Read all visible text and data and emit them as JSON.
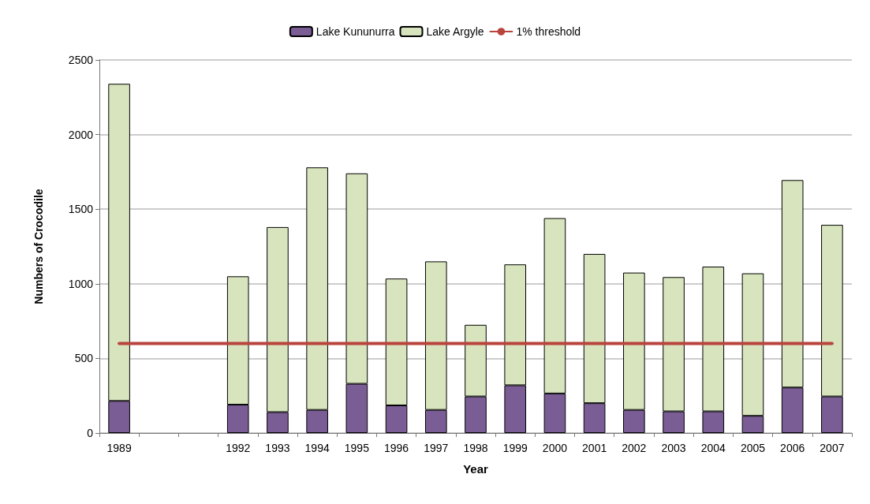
{
  "chart_data": {
    "type": "bar",
    "stacked": true,
    "xlabel": "Year",
    "ylabel": "Numbers of Crocodile",
    "categories": [
      "1989",
      null,
      null,
      "1992",
      "1993",
      "1994",
      "1995",
      "1996",
      "1997",
      "1998",
      "1999",
      "2000",
      "2001",
      "2002",
      "2003",
      "2004",
      "2005",
      "2006",
      "2007"
    ],
    "series": [
      {
        "name": "Lake Kununurra",
        "color": "#7b5d96",
        "values": [
          215,
          null,
          null,
          190,
          140,
          155,
          330,
          185,
          155,
          245,
          320,
          265,
          200,
          155,
          145,
          145,
          115,
          305,
          245
        ]
      },
      {
        "name": "Lake Argyle",
        "color": "#d7e4bd",
        "values": [
          2125,
          null,
          null,
          860,
          1240,
          1625,
          1410,
          850,
          995,
          480,
          810,
          1175,
          1000,
          920,
          900,
          970,
          955,
          1390,
          1150
        ]
      },
      {
        "name": "1% threshold",
        "type": "line",
        "color": "#b9443d",
        "line_style": "solid",
        "marker": "none",
        "values": [
          600,
          600,
          600,
          600,
          600,
          600,
          600,
          600,
          600,
          600,
          600,
          600,
          600,
          600,
          600,
          600,
          600,
          600,
          600
        ]
      }
    ],
    "ylim": [
      0,
      2500
    ],
    "yticks": [
      0,
      500,
      1000,
      1500,
      2000,
      2500
    ],
    "grid": "y",
    "legend": "top"
  }
}
